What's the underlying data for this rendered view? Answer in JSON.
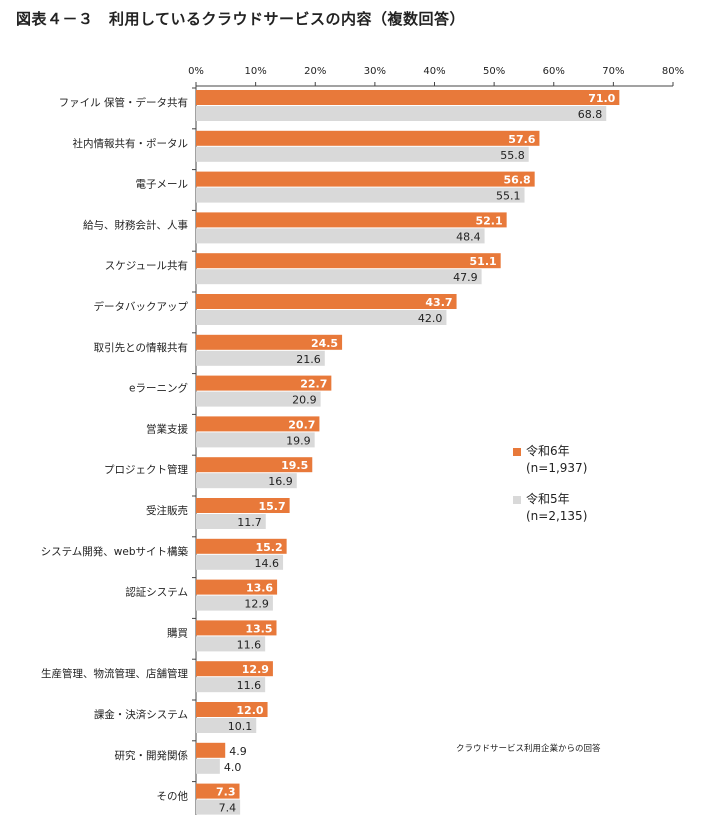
{
  "title": "図表４－３　利用しているクラウドサービスの内容（複数回答）",
  "note": "クラウドサービス利用企業からの回答",
  "colors": {
    "series1": "#e8793a",
    "series2": "#d9d9d9"
  },
  "chart_data": {
    "type": "bar",
    "orientation": "horizontal",
    "title": "図表４－３　利用しているクラウドサービスの内容（複数回答）",
    "xlim": [
      0,
      80
    ],
    "ticks": [
      "0%",
      "10%",
      "20%",
      "30%",
      "40%",
      "50%",
      "60%",
      "70%",
      "80%"
    ],
    "tick_values": [
      0,
      10,
      20,
      30,
      40,
      50,
      60,
      70,
      80
    ],
    "grid": false,
    "legend_position": "right",
    "categories": [
      "ファイル 保管・データ共有",
      "社内情報共有・ポータル",
      "電子メール",
      "給与、財務会計、人事",
      "スケジュール共有",
      "データバックアップ",
      "取引先との情報共有",
      "eラーニング",
      "営業支援",
      "プロジェクト管理",
      "受注販売",
      "システム開発、webサイト構築",
      "認証システム",
      "購買",
      "生産管理、物流管理、店舗管理",
      "課金・決済システム",
      "研究・開発関係",
      "その他"
    ],
    "series": [
      {
        "name": "令和6年",
        "n": "(n=1,937)",
        "color": "#e8793a",
        "values": [
          71.0,
          57.6,
          56.8,
          52.1,
          51.1,
          43.7,
          24.5,
          22.7,
          20.7,
          19.5,
          15.7,
          15.2,
          13.6,
          13.5,
          12.9,
          12.0,
          4.9,
          7.3
        ]
      },
      {
        "name": "令和5年",
        "n": "(n=2,135)",
        "color": "#d9d9d9",
        "values": [
          68.8,
          55.8,
          55.1,
          48.4,
          47.9,
          42.0,
          21.6,
          20.9,
          19.9,
          16.9,
          11.7,
          14.6,
          12.9,
          11.6,
          11.6,
          10.1,
          4.0,
          7.4
        ]
      }
    ]
  }
}
